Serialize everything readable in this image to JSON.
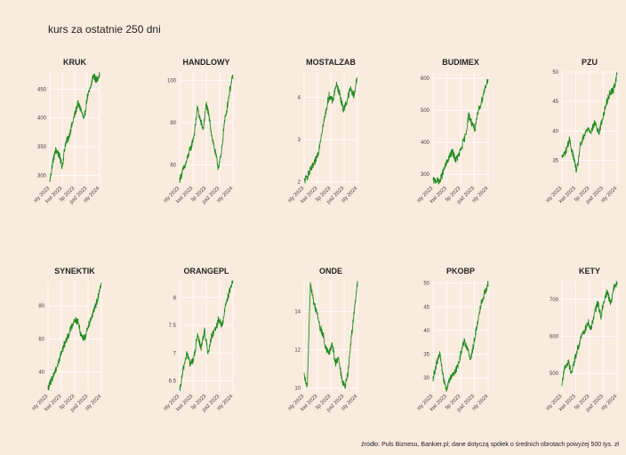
{
  "title": "kurs za ostatnie 250 dni",
  "caption": "źródło: Puls Biznesu, Bankier.pl; dane dotyczą spółek o średnich obrotach powyżej 500 tys. zł",
  "colors": {
    "background": "#FAEBDF",
    "line": "#228B22",
    "grid": "#FFFFFF",
    "text": "#444444"
  },
  "chart_data": [
    {
      "type": "line",
      "title": "KRUK",
      "x_ticks": [
        "sty 2023",
        "kwi 2023",
        "lip 2023",
        "paź 2023",
        "sty 2024"
      ],
      "y_ticks": [
        300,
        350,
        400,
        450
      ],
      "ylim": [
        285,
        480
      ],
      "series": [
        {
          "waypoints": [
            290,
            325,
            345,
            335,
            315,
            355,
            365,
            385,
            405,
            425,
            415,
            395,
            435,
            450,
            475,
            465,
            478
          ]
        }
      ]
    },
    {
      "type": "line",
      "title": "HANDLOWY",
      "x_ticks": [
        "sty 2023",
        "kwi 2023",
        "lip 2023",
        "paź 2023",
        "sty 2024"
      ],
      "y_ticks": [
        60,
        80,
        100
      ],
      "ylim": [
        51,
        104
      ],
      "series": [
        {
          "waypoints": [
            53,
            57,
            60,
            65,
            69,
            75,
            87,
            81,
            77,
            89,
            82,
            73,
            66,
            59,
            64,
            79,
            87,
            96,
            102
          ]
        }
      ]
    },
    {
      "type": "line",
      "title": "MOSTALZAB",
      "x_ticks": [
        "sty 2023",
        "kwi 2023",
        "lip 2023",
        "paź 2023",
        "sty 2024"
      ],
      "y_ticks": [
        2,
        3,
        4
      ],
      "ylim": [
        1.95,
        4.6
      ],
      "series": [
        {
          "waypoints": [
            2.0,
            2.15,
            2.3,
            2.45,
            2.7,
            3.2,
            3.6,
            4.05,
            3.9,
            4.3,
            4.1,
            3.7,
            3.9,
            4.2,
            4.05,
            4.5
          ]
        }
      ]
    },
    {
      "type": "line",
      "title": "BUDIMEX",
      "x_ticks": [
        "sty 2023",
        "kwi 2023",
        "lip 2023",
        "paź 2023",
        "sty 2024"
      ],
      "y_ticks": [
        300,
        400,
        500,
        600
      ],
      "ylim": [
        270,
        620
      ],
      "series": [
        {
          "waypoints": [
            280,
            282,
            275,
            305,
            330,
            355,
            370,
            345,
            360,
            390,
            420,
            485,
            460,
            440,
            500,
            530,
            570,
            600
          ]
        }
      ]
    },
    {
      "type": "line",
      "title": "PZU",
      "x_ticks": [
        "sty 2023",
        "kwi 2023",
        "lip 2023",
        "paź 2023",
        "sty 2024"
      ],
      "y_ticks": [
        35,
        40,
        45,
        50
      ],
      "ylim": [
        31,
        50
      ],
      "series": [
        {
          "waypoints": [
            35.5,
            36.5,
            38.5,
            36.0,
            33.0,
            37.5,
            39.0,
            40.5,
            40.0,
            41.5,
            39.5,
            42.0,
            44.5,
            46.5,
            47.0,
            49.5
          ]
        }
      ]
    },
    {
      "type": "line",
      "title": "SYNEKTIK",
      "x_ticks": [
        "sty 2023",
        "kwi 2023",
        "lip 2023",
        "paź 2023",
        "sty 2024"
      ],
      "y_ticks": [
        40,
        60,
        80
      ],
      "ylim": [
        28,
        95
      ],
      "series": [
        {
          "waypoints": [
            30,
            35,
            40,
            45,
            52,
            57,
            62,
            67,
            72,
            70,
            62,
            60,
            68,
            73,
            78,
            85,
            93
          ]
        }
      ]
    },
    {
      "type": "line",
      "title": "ORANGEPL",
      "x_ticks": [
        "sty 2023",
        "kwi 2023",
        "lip 2023",
        "paź 2023",
        "sty 2024"
      ],
      "y_ticks": [
        6.5,
        7.0,
        7.5,
        8.0
      ],
      "ylim": [
        6.3,
        8.3
      ],
      "series": [
        {
          "waypoints": [
            6.3,
            6.7,
            7.0,
            6.8,
            6.9,
            7.3,
            7.1,
            7.4,
            7.0,
            7.3,
            7.4,
            7.6,
            7.5,
            7.9,
            8.1,
            8.3
          ]
        }
      ]
    },
    {
      "type": "line",
      "title": "ONDE",
      "x_ticks": [
        "sty 2023",
        "kwi 2023",
        "lip 2023",
        "paź 2023",
        "sty 2024"
      ],
      "y_ticks": [
        10,
        12,
        14
      ],
      "ylim": [
        9.8,
        15.6
      ],
      "series": [
        {
          "waypoints": [
            10.6,
            10.0,
            15.5,
            14.5,
            14.0,
            13.2,
            12.8,
            12.0,
            11.8,
            12.3,
            11.3,
            11.5,
            10.5,
            10.0,
            10.8,
            12.6,
            14.0,
            15.5
          ]
        }
      ]
    },
    {
      "type": "line",
      "title": "PKOBP",
      "x_ticks": [
        "sty 2023",
        "kwi 2023",
        "lip 2023",
        "paź 2023",
        "sty 2024"
      ],
      "y_ticks": [
        30,
        35,
        40,
        45,
        50
      ],
      "ylim": [
        27,
        50.5
      ],
      "series": [
        {
          "waypoints": [
            30,
            33,
            35,
            30,
            27.5,
            30,
            31,
            32,
            35,
            38,
            36,
            34,
            38,
            42,
            46,
            48,
            50
          ]
        }
      ]
    },
    {
      "type": "line",
      "title": "KETY",
      "x_ticks": [
        "sty 2023",
        "kwi 2023",
        "lip 2023",
        "paź 2023",
        "sty 2024"
      ],
      "y_ticks": [
        500,
        600,
        700
      ],
      "ylim": [
        450,
        750
      ],
      "series": [
        {
          "waypoints": [
            475,
            520,
            530,
            500,
            540,
            570,
            600,
            615,
            640,
            620,
            665,
            690,
            655,
            700,
            720,
            690,
            730,
            745
          ]
        }
      ]
    }
  ]
}
